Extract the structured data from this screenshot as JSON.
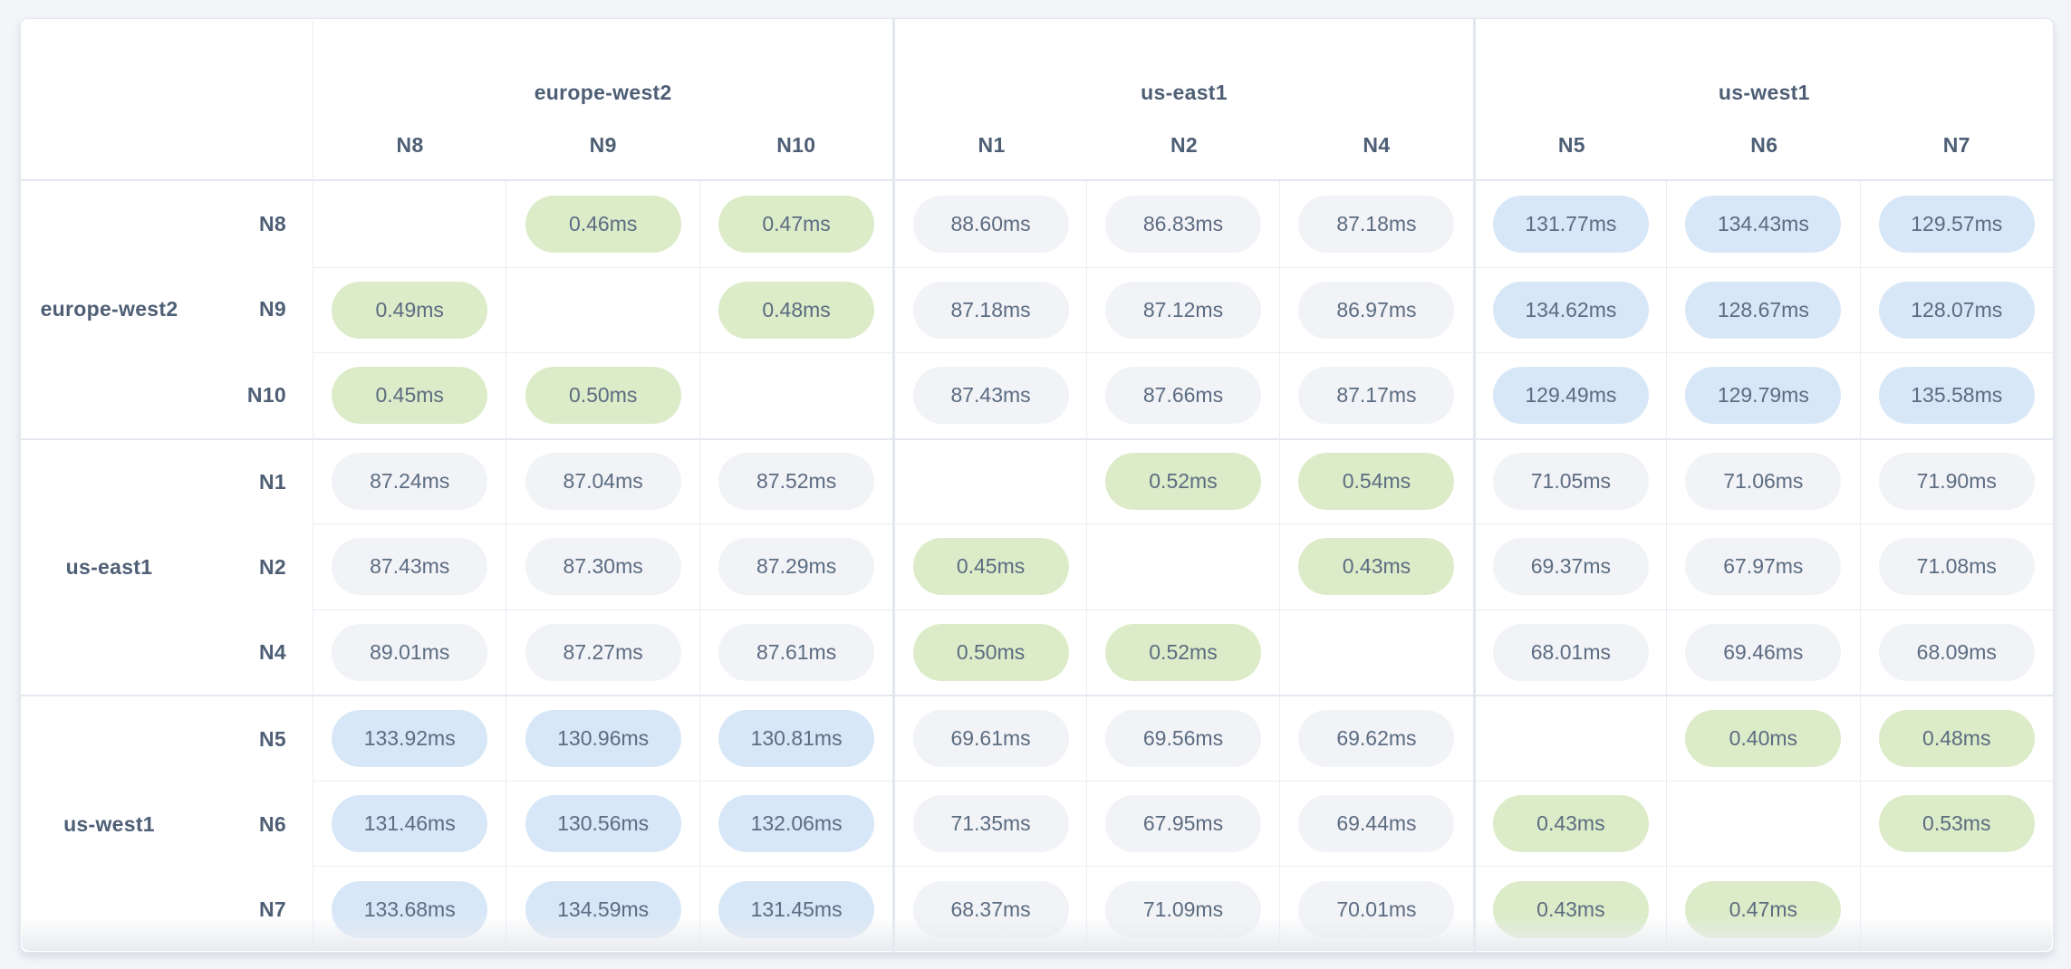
{
  "style": {
    "page_background": "#f3f5f9",
    "card_background": "#ffffff",
    "grid_line": "#eaedf3",
    "group_line": "#e3e7f0",
    "header_text_color": "#4e5f75",
    "value_text_color": "#5c6c81",
    "pill_local_bg": "#dcecc9",
    "pill_near_bg": "#f1f3f7",
    "pill_far_bg": "#d8e7f7"
  },
  "chart_data": {
    "type": "heatmap",
    "title": "",
    "unit": "ms",
    "value_decimals": 2,
    "col_groups": [
      {
        "region": "europe-west2",
        "nodes": [
          "N8",
          "N9",
          "N10"
        ]
      },
      {
        "region": "us-east1",
        "nodes": [
          "N1",
          "N2",
          "N4"
        ]
      },
      {
        "region": "us-west1",
        "nodes": [
          "N5",
          "N6",
          "N7"
        ]
      }
    ],
    "row_groups": [
      {
        "region": "europe-west2",
        "nodes": [
          "N8",
          "N9",
          "N10"
        ]
      },
      {
        "region": "us-east1",
        "nodes": [
          "N1",
          "N2",
          "N4"
        ]
      },
      {
        "region": "us-west1",
        "nodes": [
          "N5",
          "N6",
          "N7"
        ]
      }
    ],
    "rows": [
      "N8",
      "N9",
      "N10",
      "N1",
      "N2",
      "N4",
      "N5",
      "N6",
      "N7"
    ],
    "cols": [
      "N8",
      "N9",
      "N10",
      "N1",
      "N2",
      "N4",
      "N5",
      "N6",
      "N7"
    ],
    "values": [
      [
        null,
        0.46,
        0.47,
        88.6,
        86.83,
        87.18,
        131.77,
        134.43,
        129.57
      ],
      [
        0.49,
        null,
        0.48,
        87.18,
        87.12,
        86.97,
        134.62,
        128.67,
        128.07
      ],
      [
        0.45,
        0.5,
        null,
        87.43,
        87.66,
        87.17,
        129.49,
        129.79,
        135.58
      ],
      [
        87.24,
        87.04,
        87.52,
        null,
        0.52,
        0.54,
        71.05,
        71.06,
        71.9
      ],
      [
        87.43,
        87.3,
        87.29,
        0.45,
        null,
        0.43,
        69.37,
        67.97,
        71.08
      ],
      [
        89.01,
        87.27,
        87.61,
        0.5,
        0.52,
        null,
        68.01,
        69.46,
        68.09
      ],
      [
        133.92,
        130.96,
        130.81,
        69.61,
        69.56,
        69.62,
        null,
        0.4,
        0.48
      ],
      [
        131.46,
        130.56,
        132.06,
        71.35,
        67.95,
        69.44,
        0.43,
        null,
        0.53
      ],
      [
        133.68,
        134.59,
        131.45,
        68.37,
        71.09,
        70.01,
        0.43,
        0.47,
        null
      ]
    ],
    "thresholds": {
      "local_max": 1,
      "near_max": 110
    },
    "legend_position": "none",
    "grid": true
  }
}
